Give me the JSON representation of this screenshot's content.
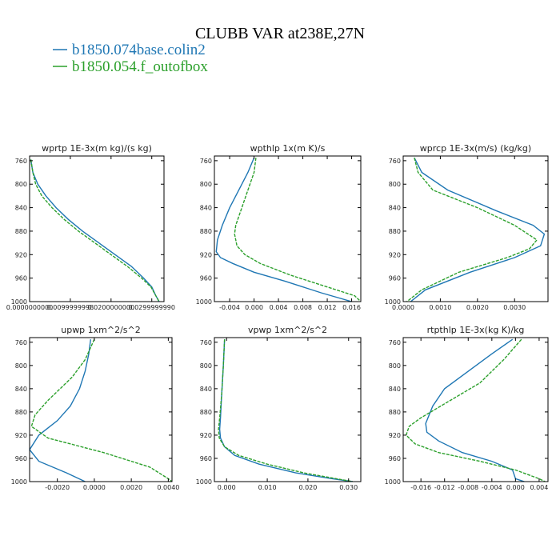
{
  "figure": {
    "title": "CLUBB VAR at238E,27N",
    "legend": [
      {
        "label": "b1850.074base.colin2",
        "color": "#1f77b4"
      },
      {
        "label": "b1850.054.f_outofbox",
        "color": "#2ca02c"
      }
    ]
  },
  "chart_data": [
    {
      "type": "line",
      "title": "wprtp  1E-3x(m kg)/(s kg)",
      "xlim": [
        0,
        0.033
      ],
      "ylim": [
        1000,
        752
      ],
      "xticks": [
        0,
        0.01,
        0.02,
        0.03
      ],
      "xtick_labels": [
        "0.0000000000",
        "0.0099999998",
        "0.0200000000",
        "0.0299999990"
      ],
      "yticks": [
        760,
        800,
        840,
        880,
        920,
        960,
        1000
      ],
      "series": [
        {
          "name": "b1850.074base.colin2",
          "color": "#1f77b4",
          "x": [
            0.0003,
            0.0008,
            0.002,
            0.004,
            0.0065,
            0.0095,
            0.013,
            0.017,
            0.021,
            0.025,
            0.028,
            0.03,
            0.031,
            0.0318
          ],
          "y": [
            758,
            780,
            800,
            820,
            840,
            860,
            880,
            900,
            920,
            940,
            960,
            975,
            990,
            1000
          ]
        },
        {
          "name": "b1850.054.f_outofbox",
          "color": "#2ca02c",
          "x": [
            0.0003,
            0.0008,
            0.0015,
            0.003,
            0.0055,
            0.0085,
            0.012,
            0.016,
            0.02,
            0.024,
            0.0275,
            0.0298,
            0.031,
            0.0318
          ],
          "y": [
            758,
            780,
            800,
            820,
            840,
            860,
            880,
            900,
            920,
            940,
            960,
            975,
            990,
            1000
          ]
        }
      ]
    },
    {
      "type": "line",
      "title": "wpthlp  1x(m K)/s",
      "xlim": [
        -0.0065,
        0.0175
      ],
      "ylim": [
        1000,
        752
      ],
      "xticks": [
        -0.004,
        0,
        0.004,
        0.008,
        0.012,
        0.016
      ],
      "xtick_labels": [
        "-0.004",
        "0.000",
        "0.004",
        "0.008",
        "0.012",
        "0.016"
      ],
      "yticks": [
        760,
        800,
        840,
        880,
        920,
        960,
        1000
      ],
      "series": [
        {
          "name": "b1850.074base.colin2",
          "color": "#1f77b4",
          "x": [
            0.0,
            -0.001,
            -0.0025,
            -0.004,
            -0.0052,
            -0.006,
            -0.0062,
            -0.0055,
            -0.0035,
            0.0,
            0.005,
            0.011,
            0.016
          ],
          "y": [
            755,
            780,
            810,
            840,
            870,
            895,
            915,
            925,
            935,
            950,
            965,
            985,
            1000
          ]
        },
        {
          "name": "b1850.054.f_outofbox",
          "color": "#2ca02c",
          "x": [
            0.0003,
            0.0,
            -0.001,
            -0.002,
            -0.003,
            -0.0032,
            -0.0028,
            -0.0015,
            0.001,
            0.006,
            0.012,
            0.0165,
            0.0175
          ],
          "y": [
            755,
            780,
            810,
            840,
            870,
            885,
            905,
            920,
            935,
            955,
            975,
            990,
            1000
          ]
        }
      ]
    },
    {
      "type": "line",
      "title": "wprcp  1E-3x(m/s) (kg/kg)",
      "xlim": [
        0,
        0.0039
      ],
      "ylim": [
        1000,
        752
      ],
      "xticks": [
        0,
        0.001,
        0.002,
        0.003
      ],
      "xtick_labels": [
        "0.0000",
        "0.0010",
        "0.0020",
        "0.0030"
      ],
      "yticks": [
        760,
        800,
        840,
        880,
        920,
        960,
        1000
      ],
      "series": [
        {
          "name": "b1850.074base.colin2",
          "color": "#1f77b4",
          "x": [
            0.0003,
            0.0005,
            0.0012,
            0.0025,
            0.0035,
            0.0038,
            0.0037,
            0.003,
            0.0018,
            0.0006,
            0.0002
          ],
          "y": [
            755,
            780,
            810,
            845,
            870,
            885,
            905,
            925,
            950,
            980,
            1000
          ]
        },
        {
          "name": "b1850.054.f_outofbox",
          "color": "#2ca02c",
          "x": [
            0.0003,
            0.0004,
            0.0008,
            0.002,
            0.003,
            0.0036,
            0.0034,
            0.0028,
            0.0015,
            0.0005,
            0.0001
          ],
          "y": [
            755,
            780,
            810,
            840,
            870,
            895,
            910,
            925,
            950,
            980,
            1000
          ]
        }
      ]
    },
    {
      "type": "line",
      "title": "upwp  1xm^2/s^2",
      "xlim": [
        -0.0035,
        0.0042
      ],
      "ylim": [
        1000,
        752
      ],
      "xticks": [
        -0.002,
        0,
        0.002,
        0.004
      ],
      "xtick_labels": [
        "-0.0020",
        "0.0000",
        "0.0020",
        "0.0040"
      ],
      "yticks": [
        760,
        800,
        840,
        880,
        920,
        960,
        1000
      ],
      "series": [
        {
          "name": "b1850.074base.colin2",
          "color": "#1f77b4",
          "x": [
            -0.0002,
            -0.0003,
            -0.0005,
            -0.0008,
            -0.0013,
            -0.002,
            -0.003,
            -0.0035,
            -0.003,
            -0.0015,
            -0.0005
          ],
          "y": [
            755,
            780,
            810,
            840,
            870,
            895,
            920,
            945,
            965,
            985,
            1000
          ]
        },
        {
          "name": "b1850.054.f_outofbox",
          "color": "#2ca02c",
          "x": [
            0.0,
            -0.0005,
            -0.0012,
            -0.0025,
            -0.0032,
            -0.0034,
            -0.0025,
            0.0005,
            0.003,
            0.004,
            0.0042
          ],
          "y": [
            755,
            790,
            820,
            860,
            885,
            905,
            925,
            950,
            975,
            995,
            1000
          ]
        }
      ]
    },
    {
      "type": "line",
      "title": "vpwp  1xm^2/s^2",
      "xlim": [
        -0.003,
        0.033
      ],
      "ylim": [
        1000,
        752
      ],
      "xticks": [
        0,
        0.01,
        0.02,
        0.03
      ],
      "xtick_labels": [
        "0.000",
        "0.010",
        "0.020",
        "0.030"
      ],
      "yticks": [
        760,
        800,
        840,
        880,
        920,
        960,
        1000
      ],
      "series": [
        {
          "name": "b1850.074base.colin2",
          "color": "#1f77b4",
          "x": [
            -0.0005,
            -0.0008,
            -0.0012,
            -0.0015,
            -0.0017,
            -0.0015,
            -0.0005,
            0.002,
            0.008,
            0.017,
            0.026,
            0.031
          ],
          "y": [
            755,
            800,
            850,
            890,
            910,
            925,
            940,
            955,
            970,
            985,
            995,
            1000
          ]
        },
        {
          "name": "b1850.054.f_outofbox",
          "color": "#2ca02c",
          "x": [
            -0.0005,
            -0.0008,
            -0.0012,
            -0.0017,
            -0.002,
            -0.0018,
            -0.0005,
            0.003,
            0.01,
            0.019,
            0.027,
            0.031
          ],
          "y": [
            755,
            800,
            850,
            890,
            910,
            925,
            940,
            955,
            970,
            985,
            995,
            1000
          ]
        }
      ]
    },
    {
      "type": "line",
      "title": "rtpthlp  1E-3x(kg K)/kg",
      "xlim": [
        -0.019,
        0.0055
      ],
      "ylim": [
        1000,
        752
      ],
      "xticks": [
        -0.016,
        -0.012,
        -0.008,
        -0.004,
        0,
        0.004
      ],
      "xtick_labels": [
        "-0.016",
        "-0.012",
        "-0.008",
        "-0.004",
        "0.000",
        "0.004"
      ],
      "yticks": [
        760,
        800,
        840,
        880,
        920,
        960,
        1000
      ],
      "series": [
        {
          "name": "b1850.074base.colin2",
          "color": "#1f77b4",
          "x": [
            -0.0005,
            -0.004,
            -0.008,
            -0.012,
            -0.014,
            -0.0152,
            -0.015,
            -0.013,
            -0.009,
            -0.004,
            -0.0005,
            0.0,
            0.0015
          ],
          "y": [
            755,
            780,
            810,
            840,
            870,
            900,
            915,
            930,
            950,
            965,
            980,
            995,
            1000
          ]
        },
        {
          "name": "b1850.054.f_outofbox",
          "color": "#2ca02c",
          "x": [
            0.001,
            -0.002,
            -0.006,
            -0.011,
            -0.016,
            -0.018,
            -0.0185,
            -0.017,
            -0.013,
            -0.006,
            0.0,
            0.004,
            0.005
          ],
          "y": [
            755,
            790,
            830,
            860,
            890,
            905,
            920,
            935,
            950,
            965,
            980,
            995,
            1000
          ]
        }
      ]
    }
  ]
}
